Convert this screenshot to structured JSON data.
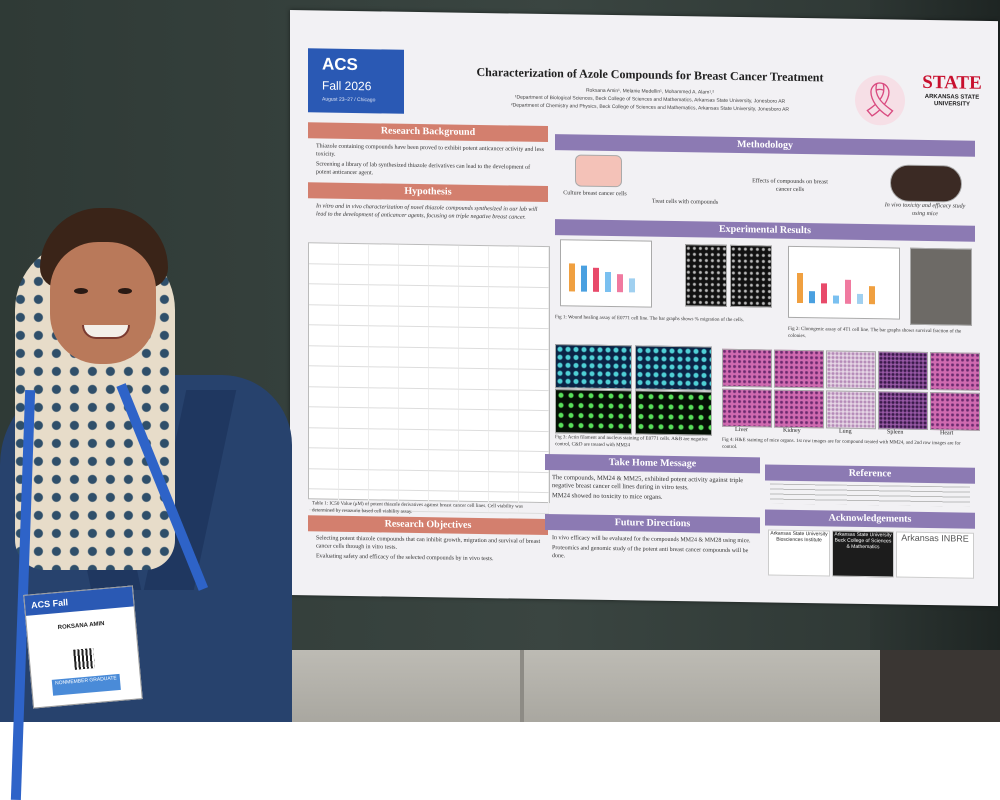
{
  "poster": {
    "logo": {
      "brand": "ACS",
      "event": "Fall 2026",
      "dates": "August 23–27 / Chicago"
    },
    "title": "Characterization of Azole Compounds for Breast Cancer Treatment",
    "authors": "Roksana Amin¹, Melanie Medellin¹, Mohammed A. Alam¹,²",
    "affil1": "¹Department of Biological Sciences, Beck College of Sciences and Mathematics, Arkansas State University, Jonesboro AR",
    "affil2": "²Department of Chemistry and Physics, Beck College of Sciences and Mathematics, Arkansas State University, Jonesboro AR",
    "university_logo": {
      "word": "STATE",
      "line1": "ARKANSAS STATE",
      "line2": "UNIVERSITY"
    },
    "sections": {
      "background": {
        "heading": "Research Background",
        "points": [
          "Thiazole containing compounds have been proved to exhibit potent anticancer activity and less toxicity.",
          "Screening a library of lab synthesized thiazole derivatives can lead to the development of potent anticancer agent."
        ]
      },
      "hypothesis": {
        "heading": "Hypothesis",
        "text": "In vitro and in vivo characterization of novel thiazole compounds synthesized in our lab will lead to the development of anticancer agents, focusing on triple negative breast cancer."
      },
      "table_caption": "Table 1: IC50 Value (μM) of potent thiazole derivatives against breast cancer cell lines. Cell viability was determined by resazurin based cell viability assay.",
      "objectives": {
        "heading": "Research Objectives",
        "points": [
          "Selecting potent thiazole compounds that can inhibit growth, migration and survival of breast cancer cells through in vitro tests.",
          "Evaluating safety and efficacy of the selected compounds by in vivo tests."
        ]
      },
      "methodology": {
        "heading": "Methodology",
        "steps": [
          "Culture breast cancer cells",
          "Treat cells with compounds",
          "Effects of compounds on breast cancer cells",
          "In vivo toxicity and efficacy study using mice"
        ]
      },
      "results": {
        "heading": "Experimental Results",
        "fig1": "Fig 1: Wound healing assay of E0771 cell line. The bar graphs shows % migration of the cells.",
        "fig2": "Fig 2: Clonogenic assay of 4T1 cell line. The bar graphs shows survival fraction of the colonies.",
        "fig3": "Fig 3: Actin filament and nucleus staining of E0771 cells. A&B are negative control, C&D are treated with MM24",
        "fig4": "Fig 4: H&E staining of mice organs. 1st row images are for compound treated with MM24, and 2nd row images are for control.",
        "organs": [
          "Liver",
          "Kidney",
          "Lung",
          "Spleen",
          "Heart"
        ]
      },
      "take_home": {
        "heading": "Take Home Message",
        "points": [
          "The compounds, MM24 & MM25, exhibited potent activity against triple negative breast cancer cell lines during in vitro tests.",
          "MM24 showed no toxicity to mice organs."
        ]
      },
      "future": {
        "heading": "Future Directions",
        "points": [
          "In vivo efficacy will be evaluated for the compounds MM24 & MM28 using mice.",
          "Proteomics and genomic study of the potent anti breast cancer compounds will be done."
        ]
      },
      "reference": {
        "heading": "Reference"
      },
      "acknowledgements": {
        "heading": "Acknowledgements",
        "logos": [
          "Arkansas State University Biosciences Institute",
          "Arkansas State University Beck College of Sciences & Mathematics",
          "Arkansas INBRE"
        ]
      }
    }
  },
  "badge": {
    "brand": "ACS Fall",
    "name": "ROKSANA AMIN",
    "status": "NONMEMBER GRADUATE"
  },
  "colors": {
    "poster_header_pink": "#d37f6e",
    "poster_header_purple": "#8c7ab3",
    "acs_blue": "#2a59b4",
    "state_red": "#c8102e"
  }
}
